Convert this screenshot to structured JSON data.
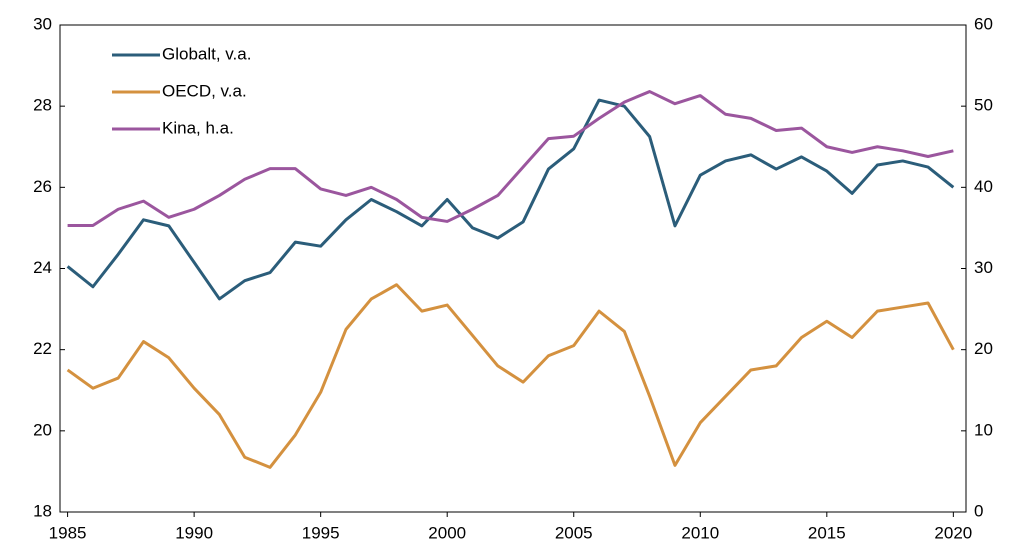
{
  "chart_data": {
    "type": "line",
    "x": [
      1985,
      1986,
      1987,
      1988,
      1989,
      1990,
      1991,
      1992,
      1993,
      1994,
      1995,
      1996,
      1997,
      1998,
      1999,
      2000,
      2001,
      2002,
      2003,
      2004,
      2005,
      2006,
      2007,
      2008,
      2009,
      2010,
      2011,
      2012,
      2013,
      2014,
      2015,
      2016,
      2017,
      2018,
      2019,
      2020
    ],
    "series": [
      {
        "name": "Globalt, v.a.",
        "color": "#2b5d7a",
        "values": [
          24.05,
          23.55,
          24.35,
          25.2,
          25.05,
          24.15,
          23.25,
          23.7,
          23.9,
          24.65,
          24.55,
          25.2,
          25.7,
          25.4,
          25.05,
          25.7,
          25.0,
          24.75,
          25.15,
          26.45,
          26.95,
          28.15,
          28.0,
          27.25,
          25.05,
          26.3,
          26.65,
          26.8,
          26.45,
          26.75,
          26.4,
          25.85,
          26.55,
          26.65,
          26.5,
          26.0
        ]
      },
      {
        "name": "OECD, v.a.",
        "color": "#d4913f",
        "values": [
          21.5,
          21.05,
          21.3,
          22.2,
          21.8,
          21.05,
          20.4,
          19.35,
          19.1,
          19.9,
          20.95,
          22.5,
          23.25,
          23.6,
          22.95,
          23.1,
          22.35,
          21.6,
          21.2,
          21.85,
          22.1,
          22.95,
          22.45,
          20.85,
          19.15,
          20.2,
          20.85,
          21.5,
          21.6,
          22.3,
          22.7,
          22.3,
          22.95,
          23.05,
          23.15,
          22.0
        ]
      },
      {
        "name": "Kina, h.a.",
        "color": "#9b569e",
        "axis": "y2",
        "values": [
          35.3,
          35.3,
          37.3,
          38.3,
          36.3,
          37.3,
          39.0,
          41.0,
          42.3,
          42.3,
          39.8,
          39.0,
          40.0,
          38.5,
          36.3,
          35.8,
          37.3,
          39.0,
          42.5,
          46.0,
          46.3,
          48.5,
          50.5,
          51.8,
          50.3,
          51.3,
          49.0,
          48.5,
          47.0,
          47.3,
          45.0,
          44.3,
          45.0,
          44.5,
          43.8,
          44.5
        ]
      }
    ],
    "xlim": [
      1984.7,
      2020.5
    ],
    "xticks": [
      1985,
      1990,
      1995,
      2000,
      2005,
      2010,
      2015,
      2020
    ],
    "ylim": [
      18,
      30
    ],
    "yticks": [
      18,
      20,
      22,
      24,
      26,
      28,
      30
    ],
    "y2lim": [
      0,
      60
    ],
    "y2ticks": [
      0,
      10,
      20,
      30,
      40,
      50,
      60
    ],
    "legend": "top-left"
  }
}
